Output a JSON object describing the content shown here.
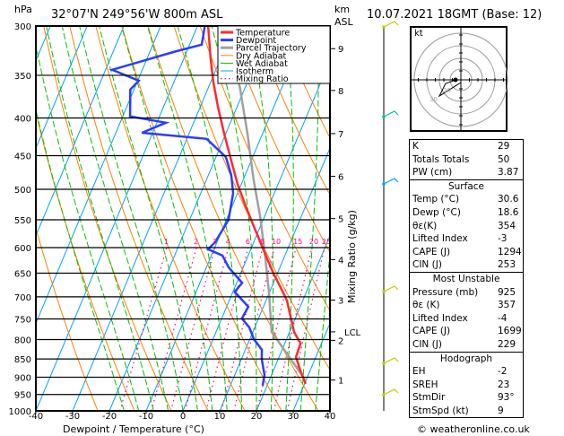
{
  "header": {
    "hpa_label": "hPa",
    "location": "32°07'N  249°56'W  800m  ASL",
    "km_label": "km",
    "asl_label": "ASL",
    "datetime": "10.07.2021  18GMT  (Base: 12)"
  },
  "legend": [
    {
      "label": "Temperature",
      "color": "#ff2a2a",
      "style": "solid"
    },
    {
      "label": "Dewpoint",
      "color": "#2a3cff",
      "style": "solid"
    },
    {
      "label": "Parcel Trajectory",
      "color": "#a0a0a0",
      "style": "solid"
    },
    {
      "label": "Dry Adiabat",
      "color": "#ff8000",
      "style": "thin"
    },
    {
      "label": "Wet Adiabat",
      "color": "#00c000",
      "style": "thin"
    },
    {
      "label": "Isotherm",
      "color": "#00a0ff",
      "style": "thin"
    },
    {
      "label": "Mixing Ratio",
      "color": "#ff0080",
      "style": "dotted"
    }
  ],
  "chart_data": {
    "type": "skew-t",
    "xlabel": "Dewpoint / Temperature (°C)",
    "ylabel": "hPa",
    "xlim": [
      -40,
      40
    ],
    "ylim": [
      1000,
      300
    ],
    "pressure_ticks": [
      300,
      350,
      400,
      450,
      500,
      550,
      600,
      650,
      700,
      750,
      800,
      850,
      900,
      950,
      1000
    ],
    "temp_ticks": [
      -40,
      -30,
      -20,
      -10,
      0,
      10,
      20,
      30,
      40
    ],
    "height_ticks_km": [
      {
        "km": "1",
        "p": 908
      },
      {
        "km": "2",
        "p": 802
      },
      {
        "km": "3",
        "p": 707
      },
      {
        "km": "4",
        "p": 623
      },
      {
        "km": "5",
        "p": 548
      },
      {
        "km": "6",
        "p": 480
      },
      {
        "km": "7",
        "p": 420
      },
      {
        "km": "8",
        "p": 367
      },
      {
        "km": "9",
        "p": 322
      }
    ],
    "lcl": {
      "label": "LCL",
      "p": 781
    },
    "mixing_ratio_axis_label": "Mixing Ratio (g/kg)",
    "mixing_ratio_labels": [
      "1",
      "2",
      "3",
      "4",
      "6",
      "8",
      "10",
      "15",
      "20",
      "25"
    ],
    "temperature": [
      [
        919,
        30.3
      ],
      [
        881,
        27.3
      ],
      [
        845,
        24.6
      ],
      [
        810,
        24.3
      ],
      [
        781,
        21.2
      ],
      [
        708,
        15.7
      ],
      [
        679,
        12.4
      ],
      [
        651,
        9.0
      ],
      [
        610,
        4.2
      ],
      [
        570,
        -0.7
      ],
      [
        530,
        -5.9
      ],
      [
        492,
        -11
      ],
      [
        458,
        -15.3
      ],
      [
        421,
        -20.3
      ],
      [
        387,
        -25.1
      ],
      [
        358,
        -29.2
      ],
      [
        332,
        -32.7
      ],
      [
        300,
        -37.1
      ]
    ],
    "dewpoint": [
      [
        924,
        18.8
      ],
      [
        894,
        18.1
      ],
      [
        850,
        15.5
      ],
      [
        826,
        14.5
      ],
      [
        799,
        11.1
      ],
      [
        770,
        8.5
      ],
      [
        749,
        5.5
      ],
      [
        722,
        5.9
      ],
      [
        689,
        0.5
      ],
      [
        670,
        1.5
      ],
      [
        638,
        -4
      ],
      [
        615,
        -7
      ],
      [
        603,
        -11.6
      ],
      [
        590,
        -10.5
      ],
      [
        550,
        -9.4
      ],
      [
        506,
        -11.2
      ],
      [
        478,
        -13.8
      ],
      [
        452,
        -17.3
      ],
      [
        427,
        -24.6
      ],
      [
        419,
        -42.9
      ],
      [
        406,
        -37.5
      ],
      [
        398,
        -48
      ],
      [
        366,
        -51
      ],
      [
        356,
        -49.7
      ],
      [
        344,
        -58.2
      ],
      [
        325,
        -43.2
      ],
      [
        318,
        -36.7
      ],
      [
        300,
        -38
      ]
    ],
    "parcel": [
      [
        906,
        29.6
      ],
      [
        781,
        15.1
      ],
      [
        692,
        10
      ],
      [
        607,
        4
      ],
      [
        542,
        -1.4
      ],
      [
        485,
        -7.2
      ],
      [
        421,
        -14
      ],
      [
        366,
        -21.1
      ],
      [
        327,
        -27.1
      ]
    ]
  },
  "hodograph": {
    "unit_label": "kt",
    "ring_labels": [
      "10",
      "20",
      "30",
      "40"
    ]
  },
  "indices": {
    "rows": [
      {
        "label": "K",
        "value": "29"
      },
      {
        "label": "Totals Totals",
        "value": "50"
      },
      {
        "label": "PW (cm)",
        "value": "3.87"
      }
    ]
  },
  "surface": {
    "title": "Surface",
    "rows": [
      {
        "label": "Temp (°C)",
        "value": "30.6"
      },
      {
        "label": "Dewp (°C)",
        "value": "18.6"
      },
      {
        "label": "θε(K)",
        "value": "354"
      },
      {
        "label": "Lifted Index",
        "value": "-3"
      },
      {
        "label": "CAPE (J)",
        "value": "1294"
      },
      {
        "label": "CIN (J)",
        "value": "253"
      }
    ]
  },
  "most_unstable": {
    "title": "Most Unstable",
    "rows": [
      {
        "label": "Pressure (mb)",
        "value": "925"
      },
      {
        "label": "θε (K)",
        "value": "357"
      },
      {
        "label": "Lifted Index",
        "value": "-4"
      },
      {
        "label": "CAPE (J)",
        "value": "1699"
      },
      {
        "label": "CIN (J)",
        "value": "229"
      }
    ]
  },
  "hodo_table": {
    "title": "Hodograph",
    "rows": [
      {
        "label": "EH",
        "value": "-2"
      },
      {
        "label": "SREH",
        "value": "23"
      },
      {
        "label": "StmDir",
        "value": "93°"
      },
      {
        "label": "StmSpd (kt)",
        "value": "9"
      }
    ]
  },
  "footer": "© weatheronline.co.uk"
}
